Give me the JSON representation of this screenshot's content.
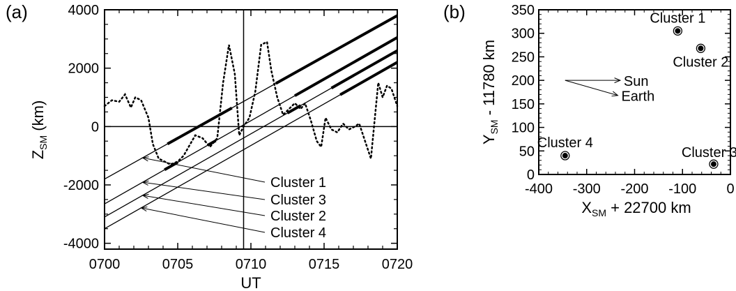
{
  "chart_data": [
    {
      "type": "line",
      "panel_label": "(a)",
      "xlabel": "UT",
      "ylabel": "Z",
      "ylabel_sub": "SM",
      "ylabel_unit": " (km)",
      "x_ticks": [
        "0700",
        "0705",
        "0710",
        "0715",
        "0720"
      ],
      "y_ticks": [
        "-4000",
        "-2000",
        "0",
        "2000",
        "4000"
      ],
      "xlim": [
        0,
        20
      ],
      "ylim": [
        -4200,
        4000
      ],
      "x_units": "minutes after 0700 UT",
      "reference_lines": {
        "vertical_x": 9.5,
        "horizontal_y": 0
      },
      "dotted_series": {
        "x": [
          0,
          0.5,
          1,
          1.4,
          1.8,
          2.1,
          2.5,
          3,
          3.3,
          3.7,
          4.1,
          4.5,
          5,
          5.4,
          5.8,
          6.2,
          6.7,
          7.2,
          7.7,
          8.1,
          8.5,
          8.9,
          9.2,
          9.5,
          9.9,
          10.3,
          10.7,
          11.1,
          11.4,
          11.8,
          12.2,
          12.6,
          13,
          13.4,
          13.7,
          14.1,
          14.5,
          14.8,
          15.1,
          15.5,
          15.9,
          16.3,
          16.7,
          17.1,
          17.4,
          17.8,
          18.2,
          18.7,
          19,
          19.3,
          19.6,
          20
        ],
        "y": [
          700,
          900,
          850,
          1100,
          650,
          1000,
          900,
          300,
          -600,
          -1100,
          -1200,
          -1300,
          -1200,
          -1000,
          -650,
          -300,
          -400,
          -700,
          -400,
          1500,
          2800,
          1800,
          -300,
          0,
          300,
          1200,
          2800,
          2900,
          1900,
          1000,
          400,
          600,
          800,
          600,
          800,
          200,
          -500,
          -700,
          300,
          -100,
          -200,
          100,
          -100,
          0,
          100,
          -500,
          -1100,
          1500,
          1000,
          1400,
          1300,
          700
        ]
      },
      "tracks": [
        {
          "name": "Cluster 1",
          "solid": [
            [
              0,
              -1800
            ],
            [
              20,
              3800
            ]
          ],
          "thick_segments": [
            [
              4.3,
              8.7
            ],
            [
              11.7,
              20
            ]
          ]
        },
        {
          "name": "Cluster 3",
          "solid": [
            [
              0,
              -2650
            ],
            [
              20,
              3050
            ]
          ],
          "thick_segments": [
            [
              4.1,
              5.0
            ],
            [
              7.1,
              7.6
            ],
            [
              13.0,
              20
            ]
          ]
        },
        {
          "name": "Cluster 2",
          "solid": [
            [
              0,
              -3100
            ],
            [
              20,
              2600
            ]
          ],
          "thick_segments": [
            [
              12.5,
              13.4
            ],
            [
              15.5,
              20
            ]
          ]
        },
        {
          "name": "Cluster 4",
          "solid": [
            [
              0,
              -3500
            ],
            [
              20,
              2200
            ]
          ],
          "thick_segments": [
            [
              16.1,
              20
            ]
          ]
        }
      ],
      "annotations": [
        "Cluster 1",
        "Cluster 3",
        "Cluster 2",
        "Cluster 4"
      ]
    },
    {
      "type": "scatter",
      "panel_label": "(b)",
      "xlabel": "X",
      "xlabel_sub": "SM",
      "xlabel_rest": " + 22700 km",
      "ylabel": "Y",
      "ylabel_sub": "SM",
      "ylabel_rest": " - 11780 km",
      "x_ticks": [
        "-400",
        "-300",
        "-200",
        "-100",
        "0"
      ],
      "y_ticks": [
        "0",
        "50",
        "100",
        "150",
        "200",
        "250",
        "300",
        "350"
      ],
      "xlim": [
        -400,
        0
      ],
      "ylim": [
        0,
        350
      ],
      "points": [
        {
          "name": "Cluster 1",
          "x": -110,
          "y": 305
        },
        {
          "name": "Cluster 2",
          "x": -62,
          "y": 268
        },
        {
          "name": "Cluster 3",
          "x": -35,
          "y": 22
        },
        {
          "name": "Cluster 4",
          "x": -345,
          "y": 40
        }
      ],
      "vectors": [
        {
          "name": "Sun",
          "from": [
            -345,
            200
          ],
          "to": [
            -230,
            200
          ]
        },
        {
          "name": "Earth",
          "from": [
            -345,
            200
          ],
          "to": [
            -235,
            168
          ]
        }
      ]
    }
  ]
}
